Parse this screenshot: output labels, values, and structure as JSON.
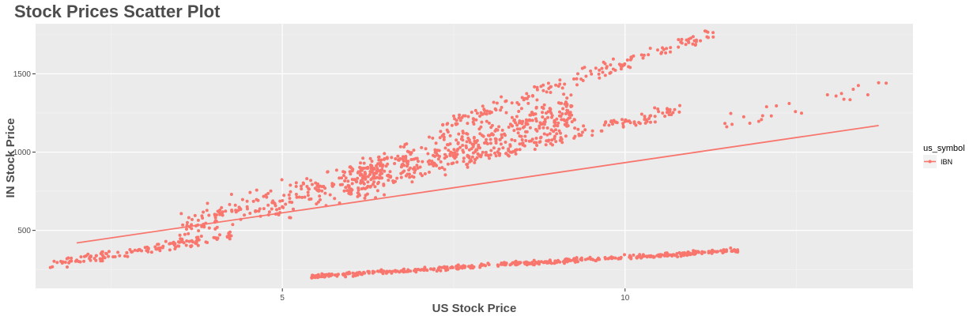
{
  "chart_data": {
    "type": "scatter",
    "title": "Stock Prices Scatter Plot",
    "xlabel": "US Stock Price",
    "ylabel": "IN Stock Price",
    "xlim": [
      1.4,
      14.2
    ],
    "ylim": [
      130,
      1820
    ],
    "x_ticks": [
      5,
      10
    ],
    "y_ticks": [
      500,
      1000,
      1500
    ],
    "x_tick_labels": [
      "5",
      "10"
    ],
    "y_tick_labels": [
      "500",
      "1000",
      "1500"
    ],
    "grid": true,
    "legend": {
      "title": "us_symbol",
      "position": "right",
      "entries": [
        "IBN"
      ]
    },
    "series": [
      {
        "name": "IBN",
        "color": "#F8766D",
        "points_clusters": [
          {
            "x_range": [
              1.6,
              4.3
            ],
            "y_start": 280,
            "y_end": 470,
            "spread": 25,
            "count": 140
          },
          {
            "x_range": [
              3.5,
              6.5
            ],
            "y_start": 520,
            "y_end": 880,
            "spread": 90,
            "count": 230
          },
          {
            "x_range": [
              5.9,
              9.3
            ],
            "y_start": 780,
            "y_end": 1270,
            "spread": 110,
            "count": 480
          },
          {
            "x_range": [
              7.3,
              11.3
            ],
            "y_start": 1170,
            "y_end": 1760,
            "spread": 40,
            "count": 160
          },
          {
            "x_range": [
              7.7,
              10.8
            ],
            "y_start": 950,
            "y_end": 1280,
            "spread": 40,
            "count": 140
          },
          {
            "x_range": [
              11.4,
              13.9
            ],
            "y_start": 1180,
            "y_end": 1430,
            "spread": 70,
            "count": 25
          },
          {
            "x_range": [
              5.4,
              11.7
            ],
            "y_start": 205,
            "y_end": 375,
            "spread": 12,
            "count": 420
          }
        ],
        "fit_line": {
          "x": [
            2.0,
            13.7
          ],
          "y": [
            420,
            1170
          ]
        }
      }
    ]
  }
}
